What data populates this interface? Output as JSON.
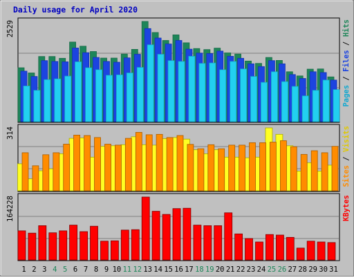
{
  "chart_data": {
    "type": "bar",
    "title": "Daily usage for April 2020",
    "categories": [
      "1",
      "2",
      "3",
      "4",
      "5",
      "6",
      "7",
      "8",
      "9",
      "10",
      "11",
      "12",
      "13",
      "14",
      "15",
      "16",
      "17",
      "18",
      "19",
      "20",
      "21",
      "22",
      "23",
      "24",
      "25",
      "26",
      "27",
      "28",
      "29",
      "30",
      "31"
    ],
    "weekend_days": [
      "4",
      "5",
      "11",
      "12",
      "18",
      "19",
      "25",
      "26"
    ],
    "panels": [
      {
        "name": "hits-files-pages",
        "ymax_label": "2529",
        "ymax": 2529,
        "axis_labels": [
          "Pages",
          "Files",
          "Hits"
        ],
        "series": [
          {
            "name": "Hits",
            "color": "#1e8659",
            "values": [
              1360,
              1230,
              1645,
              1645,
              1600,
              2010,
              1905,
              1770,
              1605,
              1605,
              1705,
              1825,
              2529,
              2250,
              2050,
              2190,
              1990,
              1845,
              1820,
              1855,
              1735,
              1705,
              1530,
              1470,
              1620,
              1545,
              1260,
              1155,
              1325,
              1330,
              1130
            ]
          },
          {
            "name": "Files",
            "color": "#1c44e0",
            "values": [
              1275,
              1140,
              1540,
              1520,
              1510,
              1860,
              1740,
              1620,
              1520,
              1500,
              1610,
              1700,
              2350,
              2110,
              1960,
              2050,
              1830,
              1730,
              1720,
              1780,
              1650,
              1600,
              1460,
              1390,
              1540,
              1460,
              1190,
              1090,
              1260,
              1240,
              1050
            ]
          },
          {
            "name": "Pages",
            "color": "#22d0f0",
            "values": [
              900,
              790,
              1060,
              1080,
              1150,
              1510,
              1360,
              1310,
              1170,
              1180,
              1230,
              1370,
              1940,
              1700,
              1540,
              1520,
              1650,
              1470,
              1480,
              1310,
              1520,
              1330,
              1140,
              990,
              1260,
              1010,
              890,
              650,
              790,
              1050,
              810
            ]
          }
        ]
      },
      {
        "name": "visits-sites",
        "ymax_label": "314",
        "ymax": 314,
        "axis_labels": [
          "Sites",
          "Visits"
        ],
        "series": [
          {
            "name": "Visits",
            "color": "#ffff22",
            "values": [
              135,
              60,
              100,
              110,
              185,
              262,
              264,
              168,
              222,
              225,
              230,
              270,
              230,
              228,
              260,
              266,
              258,
              205,
              185,
              205,
              168,
              168,
              165,
              168,
              314,
              282,
              225,
              98,
              140,
              98,
              128
            ]
          },
          {
            "name": "Sites",
            "color": "#ff8c00",
            "values": [
              190,
              125,
              180,
              190,
              233,
              278,
              276,
              266,
              233,
              228,
              262,
              292,
              280,
              282,
              266,
              276,
              232,
              210,
              230,
              210,
              228,
              228,
              240,
              240,
              243,
              250,
              220,
              182,
              200,
              190,
              222
            ]
          }
        ]
      },
      {
        "name": "kbytes",
        "ymax_label": "164228",
        "ymax": 164228,
        "axis_labels": [
          "KBytes"
        ],
        "series": [
          {
            "name": "KBytes",
            "color": "#ff0000",
            "values": [
              76000,
              70000,
              89500,
              71000,
              76000,
              91000,
              74000,
              88000,
              49000,
              50000,
              78000,
              79000,
              164228,
              127000,
              119000,
              134000,
              135000,
              91000,
              89500,
              89500,
              123000,
              68000,
              56000,
              47000,
              66500,
              65000,
              59000,
              31000,
              49000,
              47000,
              45500
            ]
          }
        ]
      }
    ]
  }
}
